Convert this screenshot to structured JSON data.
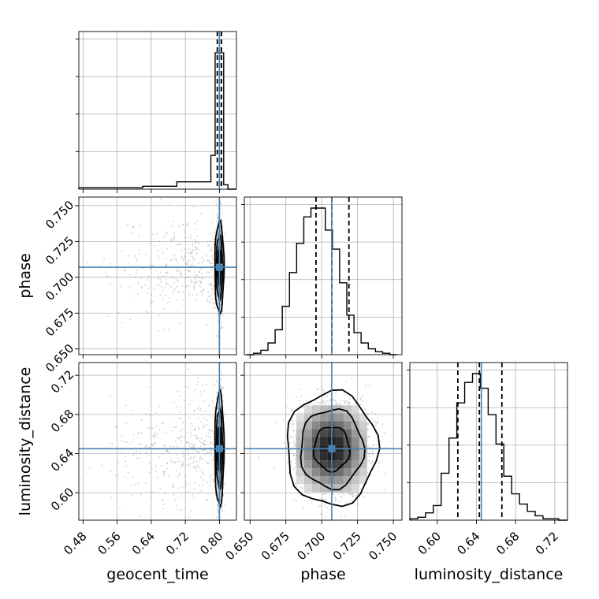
{
  "chart_data": {
    "type": "corner",
    "parameters": [
      "geocent_time",
      "phase",
      "luminosity_distance"
    ],
    "axis_labels": {
      "x": [
        "geocent_time",
        "phase",
        "luminosity_distance"
      ],
      "y_row1": "phase",
      "y_row2": "luminosity_distance"
    },
    "ranges": {
      "geocent_time": [
        0.47,
        0.84
      ],
      "phase": [
        0.646,
        0.756
      ],
      "luminosity_distance": [
        0.572,
        0.733
      ]
    },
    "ticks": {
      "geocent_time": [
        "0.48",
        "0.56",
        "0.64",
        "0.72",
        "0.80"
      ],
      "phase": [
        "0.650",
        "0.675",
        "0.700",
        "0.725",
        "0.750"
      ],
      "luminosity_distance": [
        "0.60",
        "0.64",
        "0.68",
        "0.72"
      ]
    },
    "truths": {
      "geocent_time": 0.8,
      "phase": 0.707,
      "luminosity_distance": 0.645
    },
    "quantiles": {
      "geocent_time": [
        0.795,
        0.8,
        0.805
      ],
      "phase": [
        0.696,
        0.707,
        0.719
      ],
      "luminosity_distance": [
        0.621,
        0.643,
        0.666
      ]
    },
    "histograms": {
      "geocent_time": {
        "bins": [
          0.47,
          0.62,
          0.7,
          0.78,
          0.79,
          0.8,
          0.81,
          0.82,
          0.84
        ],
        "counts": [
          0.01,
          0.02,
          0.05,
          0.23,
          0.93,
          0.93,
          0.03,
          0
        ]
      },
      "phase": {
        "edges": [
          0.6475,
          0.6525,
          0.6575,
          0.6625,
          0.6675,
          0.6725,
          0.6775,
          0.6825,
          0.6875,
          0.6925,
          0.6975,
          0.7025,
          0.7075,
          0.7125,
          0.7175,
          0.7225,
          0.7275,
          0.7325,
          0.7375,
          0.7425,
          0.7475,
          0.7525
        ],
        "counts": [
          0.0,
          0.01,
          0.03,
          0.08,
          0.17,
          0.33,
          0.56,
          0.76,
          0.94,
          1.0,
          1.0,
          0.85,
          0.72,
          0.49,
          0.27,
          0.15,
          0.08,
          0.04,
          0.02,
          0.01,
          0.0
        ]
      },
      "luminosity_distance": {
        "edges": [
          0.572,
          0.58,
          0.588,
          0.596,
          0.604,
          0.612,
          0.62,
          0.628,
          0.636,
          0.644,
          0.652,
          0.66,
          0.668,
          0.676,
          0.684,
          0.692,
          0.7,
          0.708,
          0.716,
          0.724,
          0.733
        ],
        "counts": [
          0.01,
          0.02,
          0.05,
          0.1,
          0.32,
          0.56,
          0.8,
          0.94,
          1.0,
          0.9,
          0.72,
          0.52,
          0.3,
          0.18,
          0.11,
          0.06,
          0.03,
          0.01,
          0.01,
          0.0
        ]
      }
    },
    "grid": true,
    "colors": {
      "truth_line": "#4682b4",
      "quantile_line": "#000000",
      "contour": "#000000",
      "samples": "#777777"
    }
  }
}
